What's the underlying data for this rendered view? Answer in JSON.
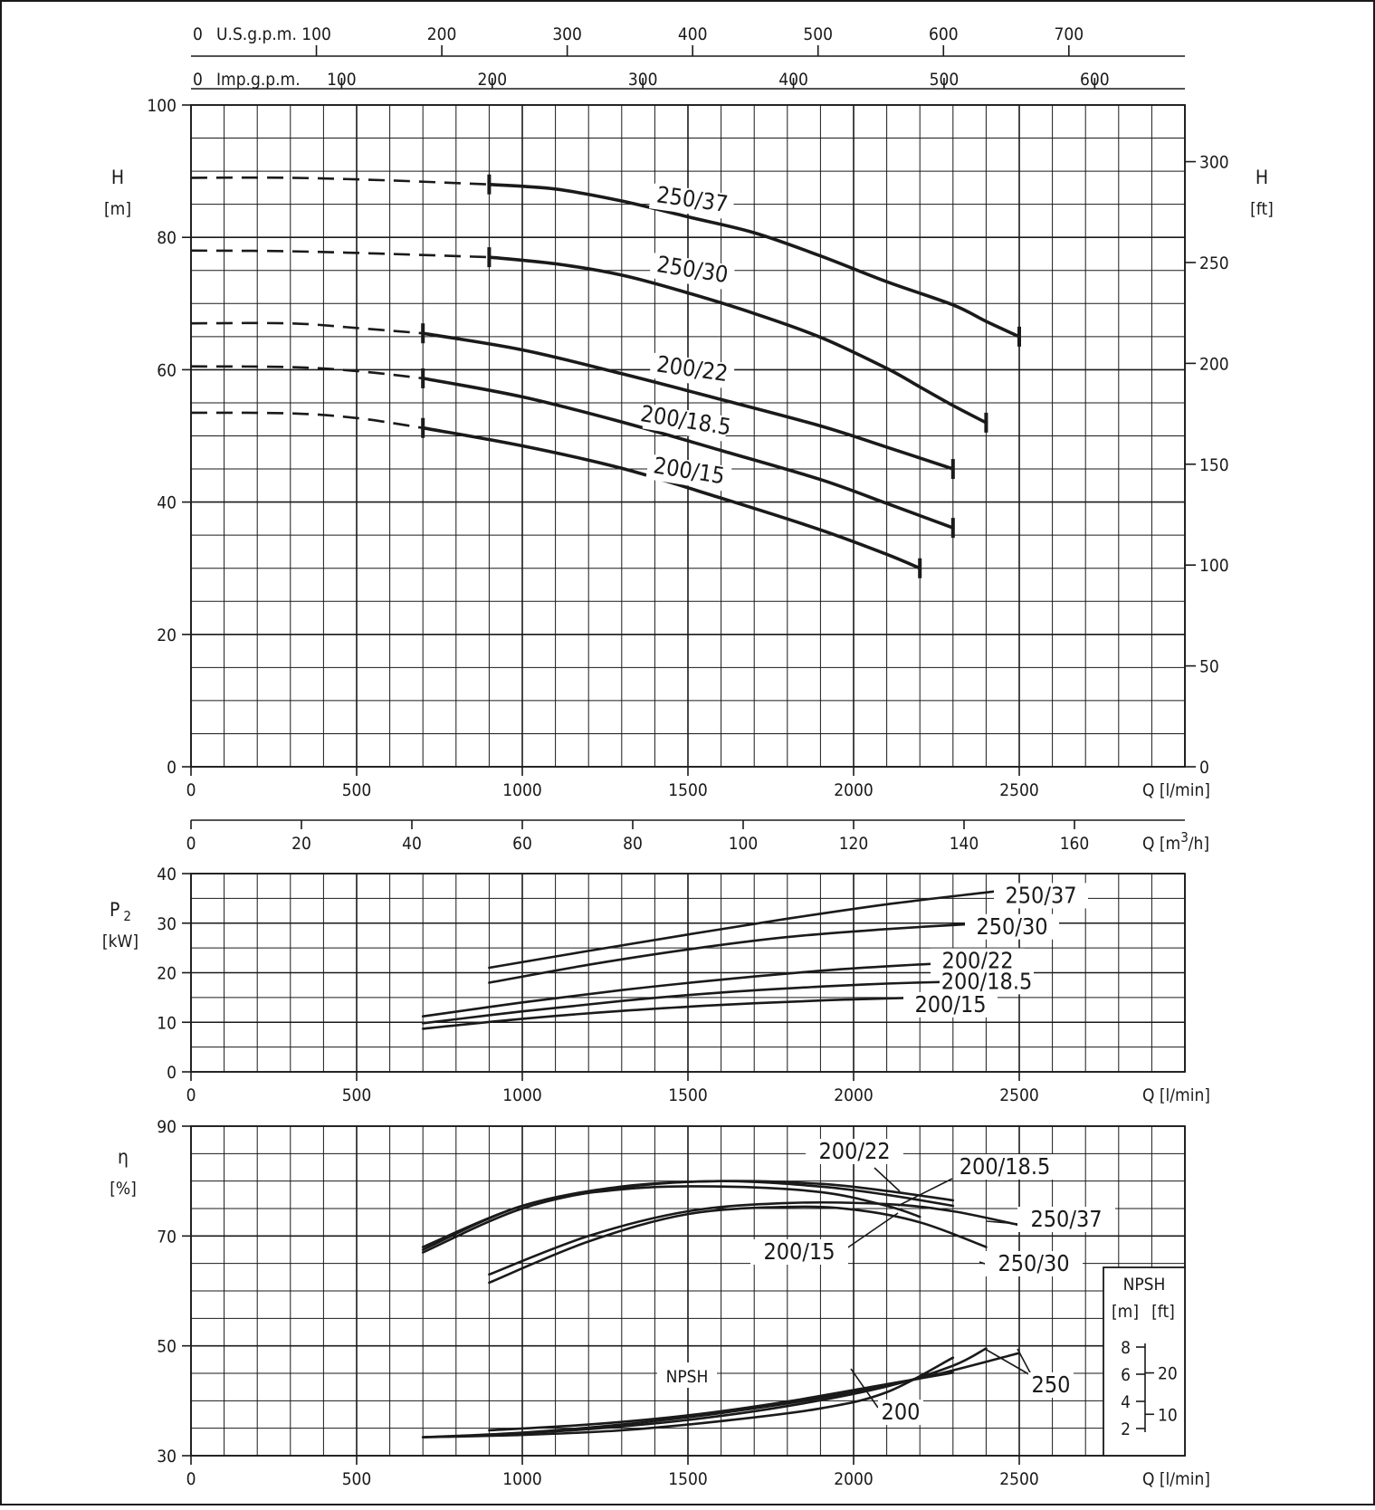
{
  "chart_data": [
    {
      "id": "head",
      "type": "line",
      "ylabel": "H",
      "yunit": "[m]",
      "y2label": "H",
      "y2unit": "[ft]",
      "xlabel": "Q",
      "xunit": "[l/min]",
      "xlim": [
        0,
        3000
      ],
      "ylim": [
        0,
        100
      ],
      "y_ticks": [
        "0",
        "20",
        "40",
        "60",
        "80",
        "100"
      ],
      "y2_ticks": [
        "0",
        "50",
        "100",
        "150",
        "200",
        "250",
        "300"
      ],
      "x_ticks": [
        "0",
        "500",
        "1000",
        "1500",
        "2000",
        "2500"
      ],
      "top_axes": [
        {
          "label": "U.S.g.p.m.",
          "ticks": [
            "0",
            "100",
            "200",
            "300",
            "400",
            "500",
            "600",
            "700"
          ]
        },
        {
          "label": "Imp.g.p.m.",
          "ticks": [
            "0",
            "100",
            "200",
            "300",
            "400",
            "500",
            "600"
          ]
        }
      ],
      "grid": true,
      "series": [
        {
          "name": "250/37",
          "dashed": {
            "x": [
              0,
              300,
              600,
              900
            ],
            "y": [
              89,
              89,
              88.6,
              88
            ]
          },
          "values": {
            "x": [
              900,
              1100,
              1300,
              1500,
              1700,
              1900,
              2100,
              2300,
              2400,
              2500
            ],
            "y": [
              88,
              87.3,
              85.5,
              83.1,
              80.7,
              77.2,
              73.3,
              69.8,
              67.3,
              65
            ]
          }
        },
        {
          "name": "250/30",
          "dashed": {
            "x": [
              0,
              300,
              600,
              900
            ],
            "y": [
              78,
              77.9,
              77.5,
              77
            ]
          },
          "values": {
            "x": [
              900,
              1100,
              1300,
              1500,
              1700,
              1900,
              2100,
              2200,
              2300,
              2400
            ],
            "y": [
              77,
              76,
              74.3,
              71.6,
              68.5,
              64.9,
              60.2,
              57.4,
              54.6,
              52
            ]
          }
        },
        {
          "name": "200/22",
          "dashed": {
            "x": [
              0,
              300,
              500,
              700
            ],
            "y": [
              67,
              67,
              66.3,
              65.5
            ]
          },
          "values": {
            "x": [
              700,
              1000,
              1300,
              1600,
              1900,
              2100,
              2300
            ],
            "y": [
              65.5,
              63,
              59.4,
              55.5,
              51.5,
              48.3,
              45
            ]
          }
        },
        {
          "name": "200/18.5",
          "dashed": {
            "x": [
              0,
              300,
              500,
              700
            ],
            "y": [
              60.5,
              60.4,
              59.8,
              58.7
            ]
          },
          "values": {
            "x": [
              700,
              1000,
              1300,
              1600,
              1900,
              2100,
              2300
            ],
            "y": [
              58.7,
              55.9,
              52.1,
              47.8,
              43.4,
              39.8,
              36.1
            ]
          }
        },
        {
          "name": "200/15",
          "dashed": {
            "x": [
              0,
              300,
              500,
              700
            ],
            "y": [
              53.5,
              53.4,
              52.7,
              51.2
            ]
          },
          "values": {
            "x": [
              700,
              1000,
              1300,
              1600,
              1900,
              2100,
              2200
            ],
            "y": [
              51.2,
              48.5,
              45.1,
              40.6,
              35.8,
              32.1,
              30
            ]
          }
        }
      ]
    },
    {
      "id": "power",
      "type": "line",
      "ylabel": "P",
      "ylabel_sub": "2",
      "yunit": "[kW]",
      "xlabel": "Q",
      "xunit": "[l/min]",
      "x2label": "Q",
      "x2unit": "[m",
      "x2unit_sup": "3",
      "x2unit_tail": "/h]",
      "x2_ticks": [
        "0",
        "20",
        "40",
        "60",
        "80",
        "100",
        "120",
        "140",
        "160"
      ],
      "xlim": [
        0,
        3000
      ],
      "ylim": [
        0,
        40
      ],
      "y_ticks": [
        "0",
        "10",
        "20",
        "30",
        "40"
      ],
      "x_ticks": [
        "0",
        "500",
        "1000",
        "1500",
        "2000",
        "2500"
      ],
      "grid": true,
      "series": [
        {
          "name": "250/37",
          "x": [
            900,
            1200,
            1500,
            1800,
            2100,
            2400,
            2500
          ],
          "y": [
            21,
            24.4,
            27.7,
            30.9,
            33.8,
            36.2,
            37
          ]
        },
        {
          "name": "250/30",
          "x": [
            900,
            1200,
            1500,
            1800,
            2100,
            2400
          ],
          "y": [
            18,
            21.6,
            24.7,
            27.2,
            28.8,
            30
          ]
        },
        {
          "name": "200/22",
          "x": [
            700,
            1000,
            1300,
            1600,
            1900,
            2100,
            2300
          ],
          "y": [
            11.2,
            14,
            16.5,
            18.6,
            20.4,
            21.3,
            22
          ]
        },
        {
          "name": "200/18.5",
          "x": [
            700,
            1000,
            1300,
            1600,
            1900,
            2100,
            2300
          ],
          "y": [
            9.8,
            12.2,
            14.3,
            16,
            17.2,
            17.8,
            18.2
          ]
        },
        {
          "name": "200/15",
          "x": [
            700,
            1000,
            1300,
            1600,
            1900,
            2100,
            2200
          ],
          "y": [
            8.7,
            10.7,
            12.3,
            13.5,
            14.4,
            14.8,
            15
          ]
        }
      ]
    },
    {
      "id": "efficiency",
      "type": "line",
      "ylabel": "η",
      "yunit": "[%]",
      "xlabel": "Q",
      "xunit": "[l/min]",
      "xlim": [
        0,
        3000
      ],
      "ylim": [
        30,
        90
      ],
      "y_ticks": [
        "30",
        "50",
        "70",
        "90"
      ],
      "x_ticks": [
        "0",
        "500",
        "1000",
        "1500",
        "2000",
        "2500"
      ],
      "grid": true,
      "series": [
        {
          "name": "200/22",
          "x": [
            700,
            1000,
            1300,
            1600,
            1900,
            2100,
            2300
          ],
          "y": [
            68,
            75.5,
            79,
            80,
            79.5,
            78.2,
            76.5
          ]
        },
        {
          "name": "200/18.5",
          "x": [
            700,
            1000,
            1300,
            1600,
            1900,
            2100,
            2300
          ],
          "y": [
            67,
            75,
            78.8,
            80,
            79,
            77.5,
            75.5
          ]
        },
        {
          "name": "200/15",
          "x": [
            700,
            1000,
            1300,
            1600,
            1900,
            2100,
            2200
          ],
          "y": [
            67.5,
            75.5,
            78.5,
            79,
            78,
            75.5,
            73.5
          ]
        },
        {
          "name": "250/37",
          "x": [
            900,
            1200,
            1500,
            1800,
            2100,
            2300,
            2500
          ],
          "y": [
            63,
            70,
            74.5,
            76,
            75.8,
            74.5,
            72
          ]
        },
        {
          "name": "250/30",
          "x": [
            900,
            1200,
            1500,
            1800,
            2000,
            2200,
            2400
          ],
          "y": [
            61.5,
            69,
            74,
            75.3,
            74.8,
            72.5,
            68
          ]
        }
      ],
      "npsh": {
        "label": "NPSH",
        "unit_m": "[m]",
        "unit_ft": "[ft]",
        "m_ticks": [
          "2",
          "4",
          "6",
          "8"
        ],
        "ft_ticks": [
          "10",
          "20"
        ],
        "series": [
          {
            "name": "200",
            "x": [
              700,
              1000,
              1300,
              1600,
              1900,
              2100,
              2300
            ],
            "y": [
              1.6,
              1.8,
              2.2,
              3,
              4.1,
              5.5,
              8.5
            ]
          },
          {
            "name": "200",
            "x": [
              900,
              1200,
              1500,
              1800,
              2100,
              2300
            ],
            "y": [
              2.2,
              2.7,
              3.5,
              4.7,
              6.2,
              7.2
            ]
          },
          {
            "name": "250",
            "x": [
              900,
              1200,
              1500,
              1800,
              2100,
              2300,
              2400
            ],
            "y": [
              1.8,
              2.3,
              3.1,
              4.3,
              6,
              7.8,
              9.3
            ]
          },
          {
            "name": "250",
            "x": [
              700,
              1000,
              1300,
              1600,
              1900,
              2200,
              2500
            ],
            "y": [
              1.6,
              2,
              2.7,
              3.7,
              5,
              6.7,
              8.9
            ]
          }
        ],
        "labels": [
          "200",
          "250"
        ]
      }
    }
  ],
  "labels": {
    "head_curves": [
      "250/37",
      "250/30",
      "200/22",
      "200/18.5",
      "200/15"
    ],
    "power_curves": [
      "250/37",
      "250/30",
      "200/22",
      "200/18.5",
      "200/15"
    ],
    "eff_curves": [
      "200/22",
      "200/18.5",
      "250/37",
      "200/15",
      "250/30"
    ]
  }
}
